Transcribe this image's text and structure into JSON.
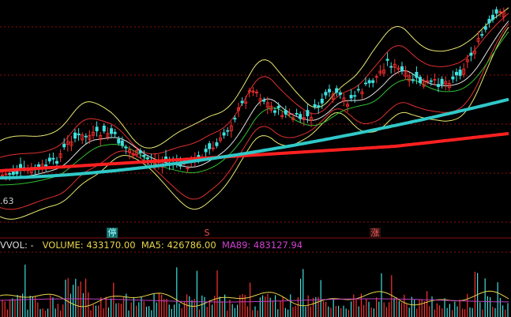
{
  "chart_data": {
    "type": "candlestick-with-volume",
    "price_label": ".63",
    "markers": [
      {
        "label": "停"
      },
      {
        "label": "S"
      },
      {
        "label": "涨"
      }
    ],
    "volume_panel": {
      "name": "VVOL: -",
      "volume": "VOLUME: 433170.00",
      "ma5": "MA5: 426786.00",
      "ma89": "MA89: 483127.94"
    },
    "colors": {
      "up": "#ff3030",
      "down": "#40e0e0",
      "ma_thick_red": "#ff2020",
      "ma_thick_cyan": "#30c8c8",
      "band_yellow": "#e8e870",
      "band_red": "#e03030",
      "band_green": "#30c030",
      "band_white": "#e0e0e0",
      "grid": "#8b1010",
      "vol_ma5": "#e8d44a",
      "vol_ma89": "#c040c0"
    }
  }
}
